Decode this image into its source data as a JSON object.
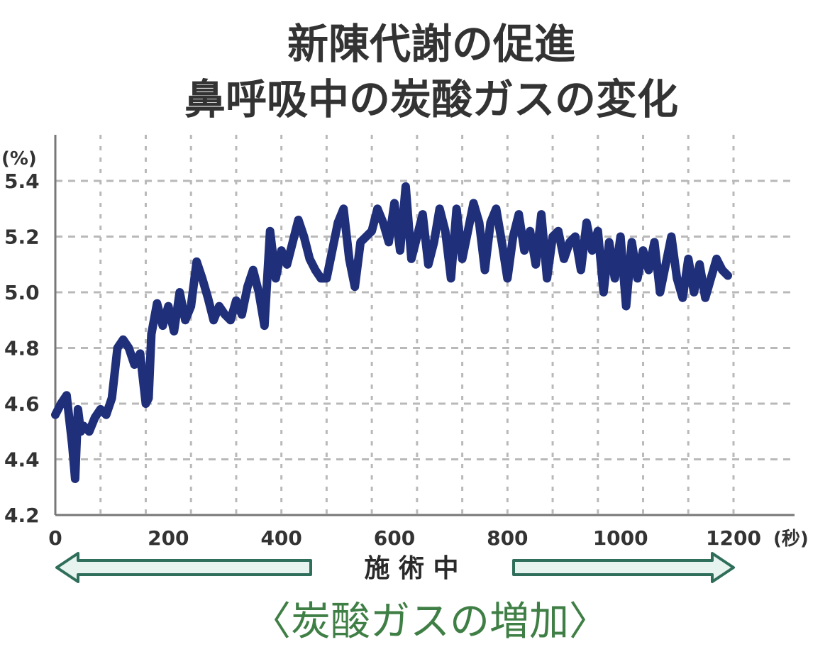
{
  "colors": {
    "line": "#1f2f7a",
    "grid": "#b9b9b9",
    "arrow_stroke": "#2f6e5a",
    "arrow_fill": "#e7f3ef",
    "caption": "#3f7f45"
  },
  "chart_data": {
    "type": "line",
    "title": [
      "新陳代謝の促進",
      "鼻呼吸中の炭酸ガスの変化"
    ],
    "y_unit": "(%)",
    "x_unit": "(秒)",
    "xlim": [
      0,
      1200
    ],
    "ylim": [
      4.2,
      5.4
    ],
    "x_ticks": [
      0,
      200,
      400,
      600,
      800,
      1000,
      1200
    ],
    "y_ticks": [
      4.2,
      4.4,
      4.6,
      4.8,
      5.0,
      5.2,
      5.4
    ],
    "x_tick_labels": [
      "0",
      "200",
      "400",
      "600",
      "800",
      "1000",
      "1200"
    ],
    "y_tick_labels": [
      "4.2",
      "4.4",
      "4.6",
      "4.8",
      "5.0",
      "5.2",
      "5.4"
    ],
    "grid": true,
    "band_label": "施 術 中",
    "caption": "〈炭酸ガスの増加〉",
    "series": [
      {
        "x": [
          0,
          10,
          20,
          30,
          35,
          40,
          45,
          50,
          60,
          70,
          80,
          90,
          100,
          110,
          120,
          130,
          140,
          150,
          160,
          165,
          170,
          180,
          190,
          200,
          210,
          220,
          230,
          240,
          250,
          260,
          270,
          280,
          290,
          300,
          310,
          320,
          330,
          340,
          350,
          360,
          370,
          380,
          390,
          400,
          410,
          420,
          430,
          440,
          450,
          460,
          470,
          480,
          490,
          500,
          510,
          520,
          530,
          540,
          550,
          560,
          570,
          580,
          590,
          600,
          610,
          620,
          630,
          640,
          650,
          660,
          670,
          680,
          690,
          700,
          710,
          720,
          730,
          740,
          750,
          760,
          770,
          780,
          790,
          800,
          810,
          820,
          830,
          840,
          850,
          860,
          870,
          880,
          890,
          900,
          910,
          920,
          930,
          940,
          950,
          960,
          970,
          980,
          990,
          1000,
          1010,
          1020,
          1030,
          1040,
          1050,
          1060,
          1070,
          1080,
          1090,
          1100,
          1110,
          1120,
          1130,
          1140,
          1150,
          1160,
          1170,
          1180,
          1190
        ],
        "y": [
          4.56,
          4.6,
          4.63,
          4.45,
          4.33,
          4.58,
          4.5,
          4.52,
          4.5,
          4.55,
          4.58,
          4.56,
          4.62,
          4.8,
          4.83,
          4.8,
          4.74,
          4.78,
          4.6,
          4.62,
          4.85,
          4.96,
          4.88,
          4.95,
          4.86,
          5.0,
          4.9,
          4.95,
          5.11,
          5.05,
          4.98,
          4.9,
          4.95,
          4.92,
          4.9,
          4.97,
          4.92,
          5.02,
          5.08,
          5.0,
          4.88,
          5.22,
          5.05,
          5.15,
          5.1,
          5.18,
          5.26,
          5.2,
          5.12,
          5.08,
          5.05,
          5.05,
          5.15,
          5.25,
          5.3,
          5.12,
          5.02,
          5.18,
          5.2,
          5.22,
          5.3,
          5.25,
          5.18,
          5.32,
          5.15,
          5.38,
          5.12,
          5.2,
          5.28,
          5.1,
          5.18,
          5.3,
          5.22,
          5.05,
          5.3,
          5.12,
          5.22,
          5.32,
          5.25,
          5.08,
          5.25,
          5.3,
          5.18,
          5.05,
          5.2,
          5.28,
          5.15,
          5.22,
          5.1,
          5.28,
          5.05,
          5.2,
          5.22,
          5.12,
          5.18,
          5.2,
          5.08,
          5.25,
          5.15,
          5.22,
          5.0,
          5.18,
          5.05,
          5.2,
          4.95,
          5.18,
          5.05,
          5.15,
          5.08,
          5.18,
          5.0,
          5.1,
          5.2,
          5.05,
          4.98,
          5.12,
          5.0,
          5.1,
          4.98,
          5.05,
          5.12,
          5.08,
          5.06
        ]
      }
    ]
  }
}
